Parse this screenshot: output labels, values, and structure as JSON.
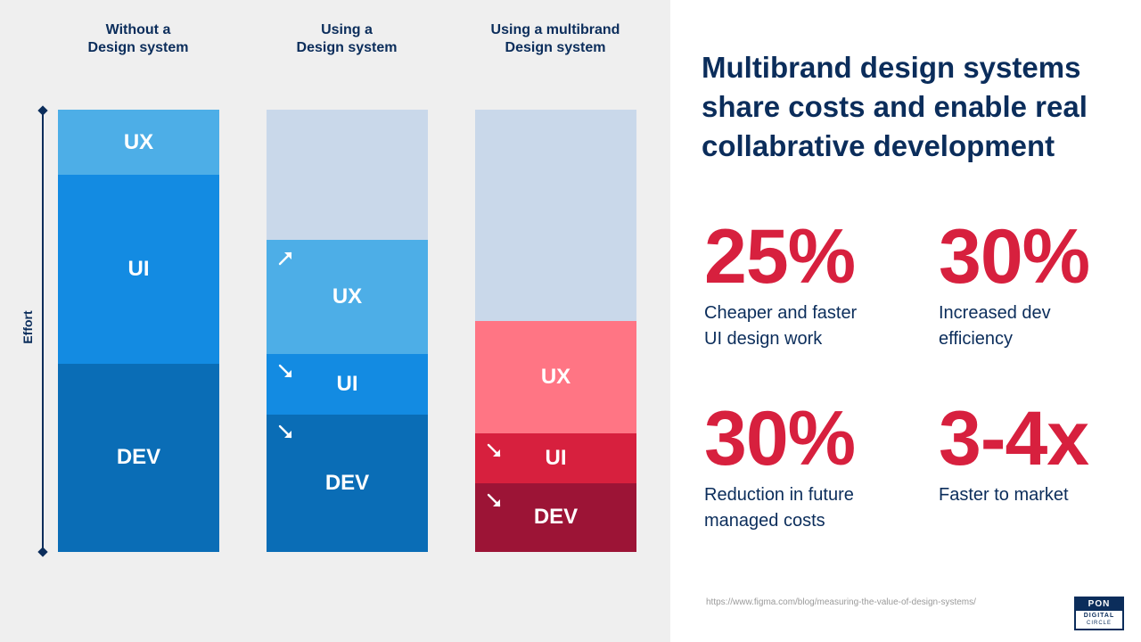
{
  "chart_data": {
    "type": "bar",
    "stacked": true,
    "ylabel": "Effort",
    "colors": {
      "placeholder": "#c9d8ea",
      "blue_ux": "#4daee7",
      "blue_ui": "#138be2",
      "blue_dev": "#0a6db6",
      "red_ux": "#ff7584",
      "red_ui": "#d7203e",
      "red_dev": "#9c1436",
      "axis": "#0b2d5b"
    },
    "columns": [
      {
        "title_lines": [
          "Without a",
          "Design system"
        ],
        "segments": [
          {
            "label": "UX",
            "value": 73,
            "color": "#4daee7",
            "arrow": ""
          },
          {
            "label": "UI",
            "value": 211,
            "color": "#138be2",
            "arrow": ""
          },
          {
            "label": "DEV",
            "value": 211,
            "color": "#0a6db6",
            "arrow": ""
          }
        ]
      },
      {
        "title_lines": [
          "Using a",
          "Design system"
        ],
        "segments": [
          {
            "label": "",
            "value": 146,
            "color": "#c9d8ea",
            "arrow": ""
          },
          {
            "label": "UX",
            "value": 127,
            "color": "#4daee7",
            "arrow": "up"
          },
          {
            "label": "UI",
            "value": 68,
            "color": "#138be2",
            "arrow": "down"
          },
          {
            "label": "DEV",
            "value": 154,
            "color": "#0a6db6",
            "arrow": "down"
          }
        ]
      },
      {
        "title_lines": [
          "Using a multibrand",
          "Design system"
        ],
        "segments": [
          {
            "label": "",
            "value": 237,
            "color": "#c9d8ea",
            "arrow": ""
          },
          {
            "label": "UX",
            "value": 125,
            "color": "#ff7584",
            "arrow": ""
          },
          {
            "label": "UI",
            "value": 56,
            "color": "#d7203e",
            "arrow": "down"
          },
          {
            "label": "DEV",
            "value": 77,
            "color": "#9c1436",
            "arrow": "down"
          }
        ]
      }
    ]
  },
  "headline": {
    "lines": [
      "Multibrand design systems",
      "share costs and enable real",
      "collabrative development"
    ]
  },
  "stats": [
    {
      "value": "25%",
      "desc_lines": [
        "Cheaper and faster",
        "UI design work"
      ]
    },
    {
      "value": "30%",
      "desc_lines": [
        "Increased dev",
        "efficiency"
      ]
    },
    {
      "value": "30%",
      "desc_lines": [
        "Reduction in future",
        "managed costs"
      ]
    },
    {
      "value": "3-4x",
      "desc_lines": [
        "Faster to market"
      ]
    }
  ],
  "source": {
    "url": "https://www.figma.com/blog/measuring-the-value-of-design-systems/"
  },
  "logo": {
    "brand": "PON",
    "line1": "DIGITAL",
    "line2": "CIRCLE"
  },
  "colors": {
    "navy": "#0b2d5b",
    "accent_red": "#d7203e",
    "panel_gray": "#efefef"
  }
}
